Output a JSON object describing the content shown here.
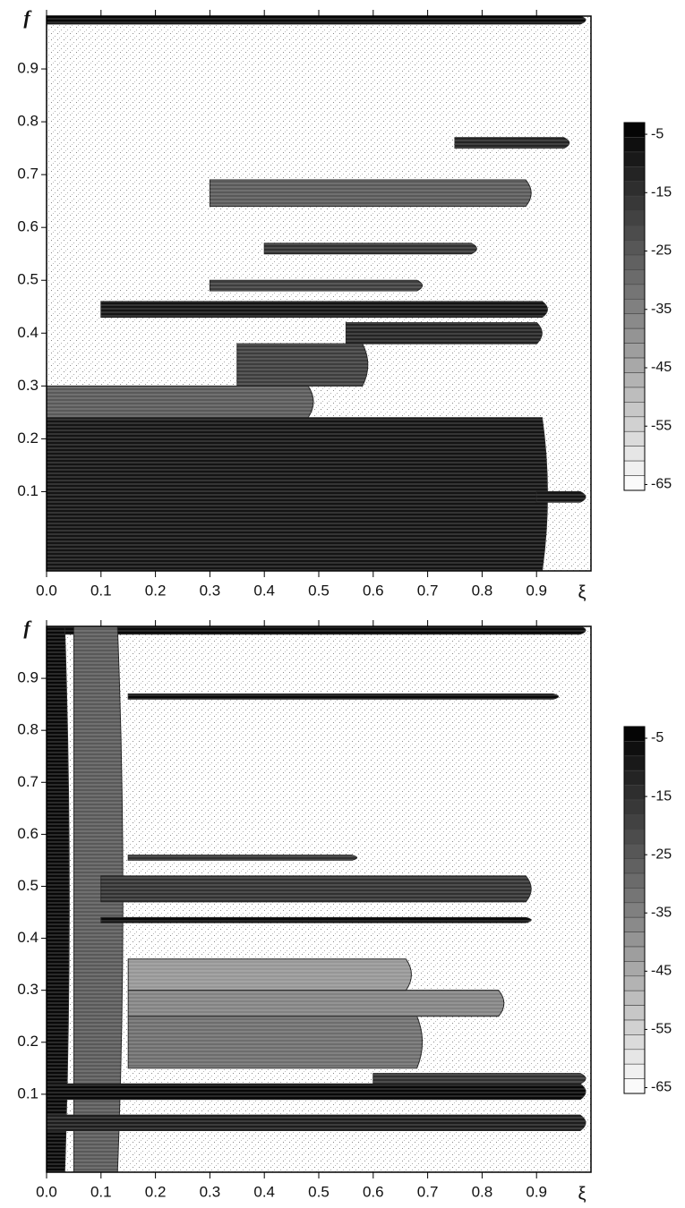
{
  "chart_data": [
    {
      "type": "contour",
      "xlabel": "ξ",
      "ylabel": "f",
      "xlim": [
        0,
        1.0
      ],
      "ylim": [
        -0.05,
        1.0
      ],
      "xticks": [
        {
          "value": 0,
          "label": "0.0"
        },
        0.1,
        0.2,
        0.3,
        0.4,
        0.5,
        0.6,
        0.7,
        0.8,
        0.9
      ],
      "yticks": [
        0.1,
        0.2,
        0.3,
        0.4,
        0.5,
        0.6,
        0.7,
        0.8,
        0.9
      ],
      "clim": [
        -66,
        -3
      ],
      "cticks": [
        -5,
        -15,
        -25,
        -35,
        -45,
        -55,
        -65
      ],
      "regions": [
        {
          "f": [
            0.985,
            1.0
          ],
          "xi": [
            0,
            1.0
          ],
          "level": -5
        },
        {
          "f": [
            -0.05,
            0.24
          ],
          "xi": [
            0,
            0.93
          ],
          "level": -8
        },
        {
          "f": [
            0.24,
            0.3
          ],
          "xi": [
            0,
            0.5
          ],
          "level": -25
        },
        {
          "f": [
            0.3,
            0.38
          ],
          "xi": [
            0.35,
            0.6
          ],
          "level": -18
        },
        {
          "f": [
            0.38,
            0.42
          ],
          "xi": [
            0.55,
            0.92
          ],
          "level": -12
        },
        {
          "f": [
            0.43,
            0.46
          ],
          "xi": [
            0.1,
            0.93
          ],
          "level": -8
        },
        {
          "f": [
            0.48,
            0.5
          ],
          "xi": [
            0.3,
            0.7
          ],
          "level": -18
        },
        {
          "f": [
            0.55,
            0.57
          ],
          "xi": [
            0.4,
            0.8
          ],
          "level": -15
        },
        {
          "f": [
            0.64,
            0.69
          ],
          "xi": [
            0.3,
            0.9
          ],
          "level": -25
        },
        {
          "f": [
            0.75,
            0.77
          ],
          "xi": [
            0.75,
            0.97
          ],
          "level": -12
        },
        {
          "f": [
            0.08,
            0.1
          ],
          "xi": [
            0.9,
            1.0
          ],
          "level": -8
        }
      ]
    },
    {
      "type": "contour",
      "xlabel": "ξ",
      "ylabel": "f",
      "xlim": [
        0,
        1.0
      ],
      "ylim": [
        -0.05,
        1.0
      ],
      "xticks": [
        {
          "value": 0,
          "label": "0.0"
        },
        0.1,
        0.2,
        0.3,
        0.4,
        0.5,
        0.6,
        0.7,
        0.8,
        0.9
      ],
      "yticks": [
        0.1,
        0.2,
        0.3,
        0.4,
        0.5,
        0.6,
        0.7,
        0.8,
        0.9
      ],
      "clim": [
        -66,
        -3
      ],
      "cticks": [
        -5,
        -15,
        -25,
        -35,
        -45,
        -55,
        -65
      ],
      "regions": [
        {
          "f": [
            0.985,
            1.0
          ],
          "xi": [
            0,
            1.0
          ],
          "level": -5
        },
        {
          "f": [
            -0.05,
            1.0
          ],
          "xi": [
            0.05,
            0.15
          ],
          "level": -25
        },
        {
          "f": [
            0.15,
            0.25
          ],
          "xi": [
            0.15,
            0.7
          ],
          "level": -30
        },
        {
          "f": [
            0.25,
            0.3
          ],
          "xi": [
            0.15,
            0.85
          ],
          "level": -35
        },
        {
          "f": [
            0.3,
            0.36
          ],
          "xi": [
            0.15,
            0.68
          ],
          "level": -40
        },
        {
          "f": [
            -0.05,
            1.0
          ],
          "xi": [
            0,
            0.05
          ],
          "level": -5
        },
        {
          "f": [
            0.09,
            0.12
          ],
          "xi": [
            0,
            1.0
          ],
          "level": -5
        },
        {
          "f": [
            0.03,
            0.06
          ],
          "xi": [
            0,
            1.0
          ],
          "level": -10
        },
        {
          "f": [
            0.12,
            0.14
          ],
          "xi": [
            0.6,
            1.0
          ],
          "level": -15
        },
        {
          "f": [
            0.43,
            0.44
          ],
          "xi": [
            0.1,
            0.9
          ],
          "level": -5
        },
        {
          "f": [
            0.47,
            0.52
          ],
          "xi": [
            0.1,
            0.9
          ],
          "level": -15
        },
        {
          "f": [
            0.55,
            0.56
          ],
          "xi": [
            0.15,
            0.58
          ],
          "level": -15
        },
        {
          "f": [
            0.86,
            0.87
          ],
          "xi": [
            0.15,
            0.95
          ],
          "level": -5
        }
      ]
    }
  ]
}
